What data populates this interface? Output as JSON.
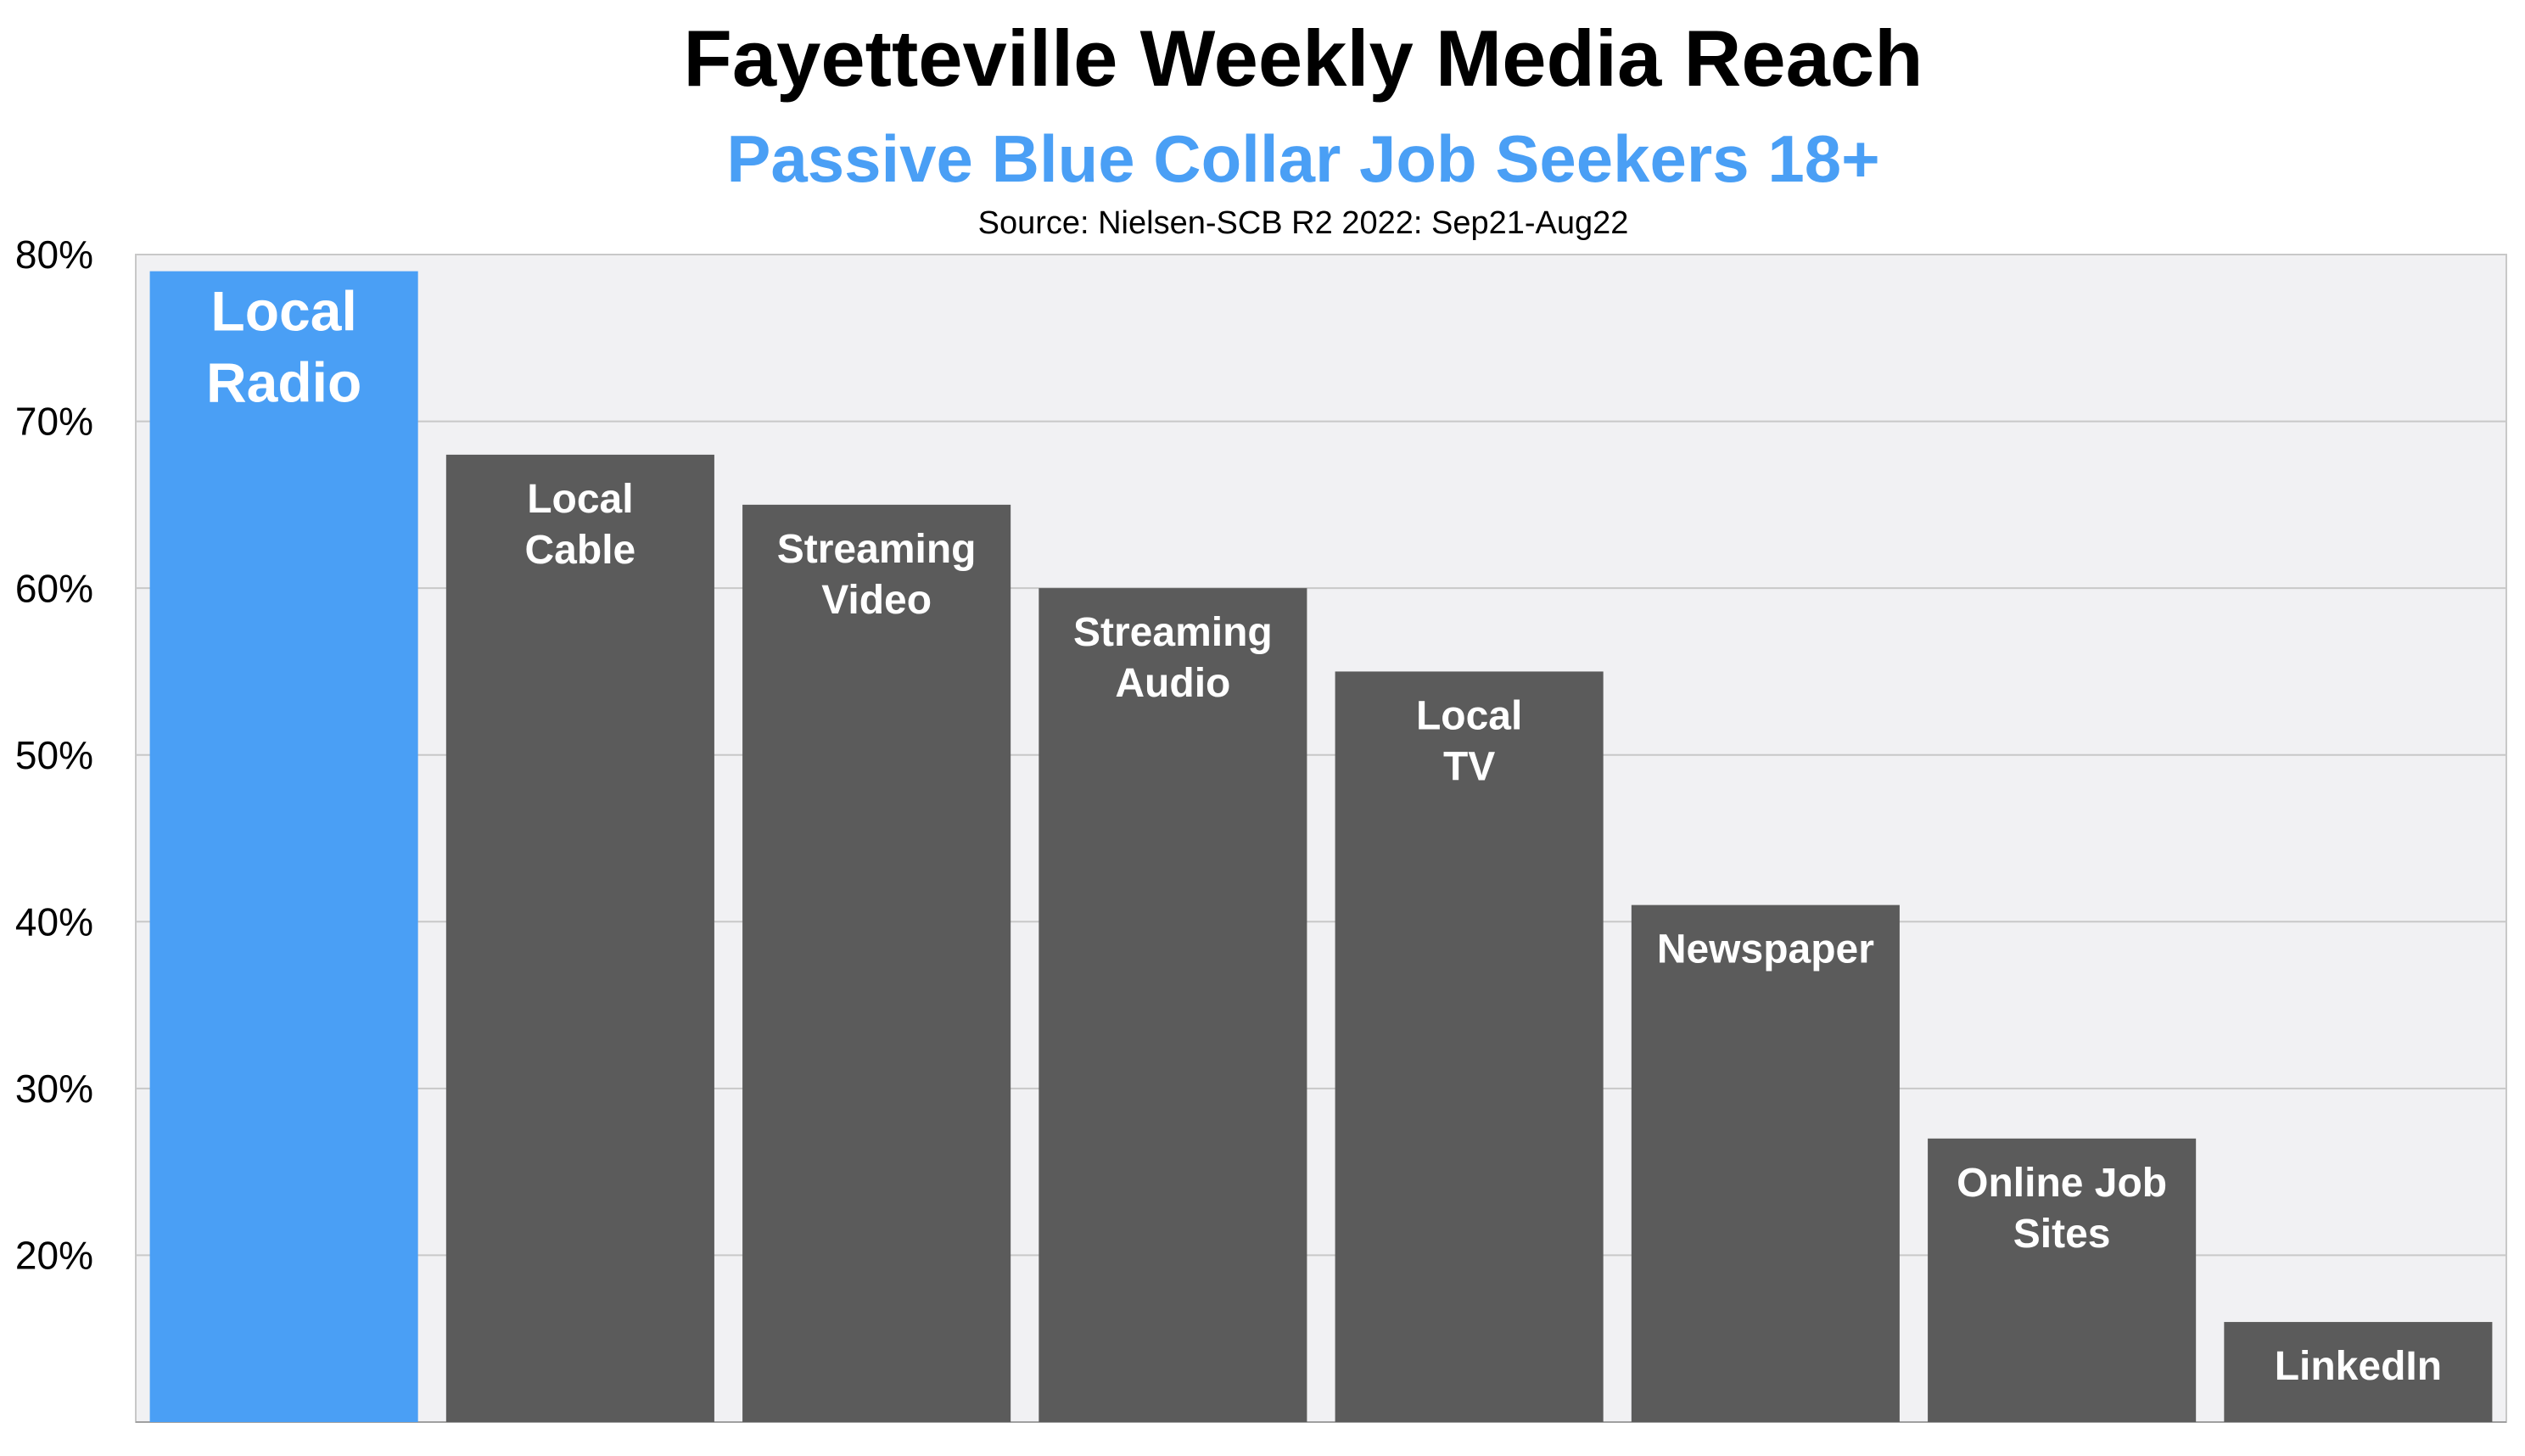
{
  "title": "Fayetteville Weekly Media Reach",
  "subtitle": "Passive Blue Collar Job Seekers 18+",
  "source": "Source: Nielsen-SCB R2 2022: Sep21-Aug22",
  "colors": {
    "highlight": "#4a9ff5",
    "bar": "#5b5b5b",
    "plot_background": "#f1f1f3",
    "grid": "#c8c8c8",
    "subtitle": "#4a9ff5"
  },
  "chart_data": {
    "type": "bar",
    "title": "Fayetteville Weekly Media Reach",
    "subtitle": "Passive Blue Collar Job Seekers 18+",
    "categories": [
      "Local Radio",
      "Local Cable",
      "Streaming Video",
      "Streaming Audio",
      "Local TV",
      "Newspaper",
      "Online Job Sites",
      "LinkedIn"
    ],
    "bar_labels": [
      [
        "Local",
        "Radio"
      ],
      [
        "Local",
        "Cable"
      ],
      [
        "Streaming",
        "Video"
      ],
      [
        "Streaming",
        "Audio"
      ],
      [
        "Local",
        "TV"
      ],
      [
        "Newspaper"
      ],
      [
        "Online Job",
        "Sites"
      ],
      [
        "LinkedIn"
      ]
    ],
    "values": [
      79,
      68,
      65,
      60,
      55,
      41,
      27,
      16
    ],
    "highlight_index": 0,
    "ylim": [
      10,
      80
    ],
    "yticks": [
      20,
      30,
      40,
      50,
      60,
      70,
      80
    ],
    "ytick_labels": [
      "20%",
      "30%",
      "40%",
      "50%",
      "60%",
      "70%",
      "80%"
    ],
    "xlabel": "",
    "ylabel": "",
    "grid": true,
    "legend": "none"
  }
}
